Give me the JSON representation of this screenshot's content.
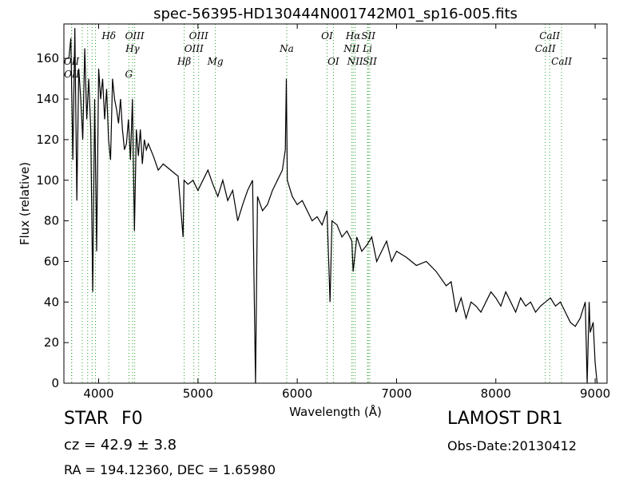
{
  "chart_data": {
    "type": "line",
    "title": "spec-56395-HD130444N001742M01_sp16-005.fits",
    "xlabel": "Wavelength (Å)",
    "ylabel": "Flux (relative)",
    "xlim": [
      3650,
      9120
    ],
    "ylim": [
      0,
      177
    ],
    "xticks": [
      4000,
      5000,
      6000,
      7000,
      8000,
      9000
    ],
    "yticks": [
      0,
      20,
      40,
      60,
      80,
      100,
      120,
      140,
      160
    ],
    "grid": false,
    "legend": "none",
    "line_color": "#000000",
    "marker_color": "#2ca02c",
    "series": [
      {
        "x": [
          3700,
          3720,
          3740,
          3760,
          3780,
          3800,
          3820,
          3840,
          3860,
          3880,
          3900,
          3920,
          3940,
          3960,
          3980,
          4000,
          4020,
          4040,
          4060,
          4080,
          4100,
          4120,
          4140,
          4160,
          4180,
          4200,
          4220,
          4240,
          4260,
          4280,
          4300,
          4320,
          4340,
          4360,
          4380,
          4400,
          4420,
          4440,
          4460,
          4480,
          4500,
          4550,
          4600,
          4650,
          4700,
          4750,
          4800,
          4850,
          4860,
          4900,
          4950,
          5000,
          5050,
          5100,
          5150,
          5200,
          5250,
          5300,
          5350,
          5400,
          5450,
          5500,
          5550,
          5580,
          5600,
          5650,
          5700,
          5750,
          5800,
          5850,
          5880,
          5890,
          5900,
          5950,
          6000,
          6050,
          6100,
          6150,
          6200,
          6250,
          6300,
          6330,
          6350,
          6400,
          6450,
          6500,
          6550,
          6563,
          6600,
          6650,
          6700,
          6750,
          6800,
          6850,
          6900,
          6950,
          7000,
          7100,
          7200,
          7300,
          7400,
          7500,
          7550,
          7600,
          7650,
          7700,
          7750,
          7800,
          7850,
          7900,
          7950,
          8000,
          8050,
          8100,
          8150,
          8200,
          8250,
          8300,
          8350,
          8400,
          8450,
          8500,
          8550,
          8600,
          8650,
          8700,
          8750,
          8800,
          8850,
          8900,
          8920,
          8940,
          8950,
          8980,
          9000,
          9020
        ],
        "y": [
          160,
          170,
          110,
          175,
          90,
          155,
          140,
          120,
          165,
          130,
          150,
          125,
          45,
          140,
          65,
          155,
          140,
          150,
          130,
          145,
          120,
          110,
          150,
          140,
          135,
          128,
          140,
          125,
          115,
          118,
          130,
          110,
          140,
          75,
          125,
          112,
          125,
          108,
          120,
          115,
          118,
          112,
          105,
          108,
          106,
          104,
          102,
          72,
          100,
          98,
          100,
          95,
          100,
          105,
          98,
          92,
          100,
          90,
          95,
          80,
          88,
          95,
          100,
          0,
          92,
          85,
          88,
          95,
          100,
          105,
          115,
          150,
          100,
          92,
          88,
          90,
          85,
          80,
          82,
          78,
          85,
          40,
          80,
          78,
          72,
          75,
          70,
          55,
          72,
          65,
          68,
          72,
          60,
          65,
          70,
          60,
          65,
          62,
          58,
          60,
          55,
          48,
          50,
          35,
          42,
          32,
          40,
          38,
          35,
          40,
          45,
          42,
          38,
          45,
          40,
          35,
          42,
          38,
          40,
          35,
          38,
          40,
          42,
          38,
          40,
          35,
          30,
          28,
          32,
          40,
          0,
          40,
          25,
          30,
          10,
          0
        ]
      }
    ],
    "lines": [
      {
        "x": 3727,
        "name": "OII",
        "row": 2
      },
      {
        "x": 3729,
        "name": "OII",
        "row": 3
      },
      {
        "x": 3835,
        "name": "",
        "row": 0
      },
      {
        "x": 3889,
        "name": "",
        "row": 1
      },
      {
        "x": 3934,
        "name": "",
        "row": 0
      },
      {
        "x": 3968,
        "name": "",
        "row": 1
      },
      {
        "x": 4102,
        "name": "Hδ",
        "row": 0
      },
      {
        "x": 4304,
        "name": "G",
        "row": 3
      },
      {
        "x": 4341,
        "name": "Hγ",
        "row": 1
      },
      {
        "x": 4363,
        "name": "OIII",
        "row": 0
      },
      {
        "x": 4861,
        "name": "Hβ",
        "row": 2
      },
      {
        "x": 4959,
        "name": "OIII",
        "row": 1
      },
      {
        "x": 5007,
        "name": "OIII",
        "row": 0
      },
      {
        "x": 5175,
        "name": "Mg",
        "row": 2
      },
      {
        "x": 5894,
        "name": "Na",
        "row": 1
      },
      {
        "x": 6300,
        "name": "OI",
        "row": 0
      },
      {
        "x": 6364,
        "name": "OI",
        "row": 2
      },
      {
        "x": 6548,
        "name": "NII",
        "row": 1
      },
      {
        "x": 6563,
        "name": "Hα",
        "row": 0
      },
      {
        "x": 6583,
        "name": "NII",
        "row": 2
      },
      {
        "x": 6707,
        "name": "Li",
        "row": 1
      },
      {
        "x": 6716,
        "name": "SII",
        "row": 0
      },
      {
        "x": 6731,
        "name": "SII",
        "row": 2
      },
      {
        "x": 8498,
        "name": "CaII",
        "row": 1
      },
      {
        "x": 8542,
        "name": "CaII",
        "row": 0
      },
      {
        "x": 8662,
        "name": "CaII",
        "row": 2
      }
    ]
  },
  "info": {
    "object_type": "STAR",
    "subclass": "F0",
    "survey": "LAMOST DR1",
    "cz": "cz = 42.9 ± 3.8",
    "obs_date": "Obs-Date:20130412",
    "radec": "RA = 194.12360, DEC = 1.65980"
  }
}
